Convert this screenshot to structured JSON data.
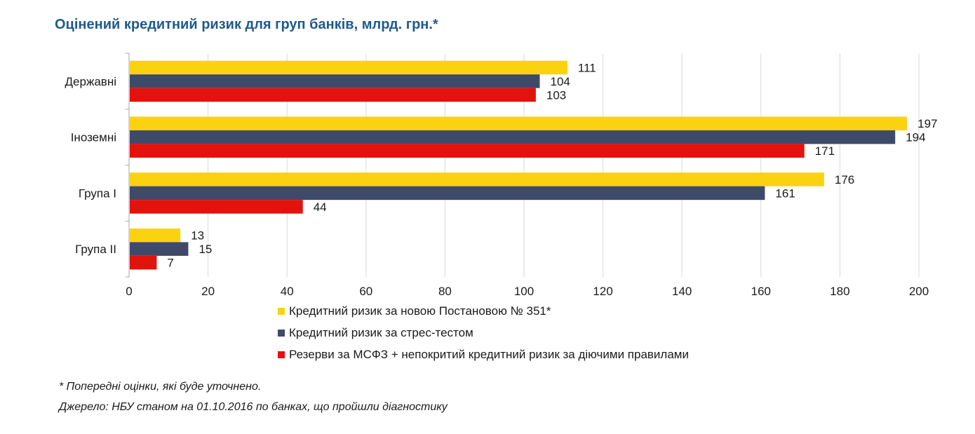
{
  "chart_data": {
    "type": "bar",
    "orientation": "horizontal",
    "title": "Оцінений кредитний ризик для груп банків, млрд. грн.*",
    "categories": [
      "Державні",
      "Іноземні",
      "Група І",
      "Група ІІ"
    ],
    "series": [
      {
        "name": "Кредитний ризик за новою Постановою № 351*",
        "color": "#fbd20f",
        "values": [
          111,
          197,
          176,
          13
        ]
      },
      {
        "name": "Кредитний ризик за стрес-тестом",
        "color": "#3f4a6b",
        "values": [
          104,
          194,
          161,
          15
        ]
      },
      {
        "name": "Резерви за МСФЗ + непокритий кредитний ризик за діючими правилами",
        "color": "#e2120c",
        "values": [
          103,
          171,
          44,
          7
        ]
      }
    ],
    "xlim": [
      0,
      200
    ],
    "xticks": [
      0,
      20,
      40,
      60,
      80,
      100,
      120,
      140,
      160,
      180,
      200
    ],
    "grid": true,
    "legend_position": "bottom"
  },
  "notes": {
    "preliminary": "* Попередні оцінки, які буде уточнено.",
    "source": "Джерело: НБУ станом на 01.10.2016 по банках, що пройшли діагностику"
  }
}
